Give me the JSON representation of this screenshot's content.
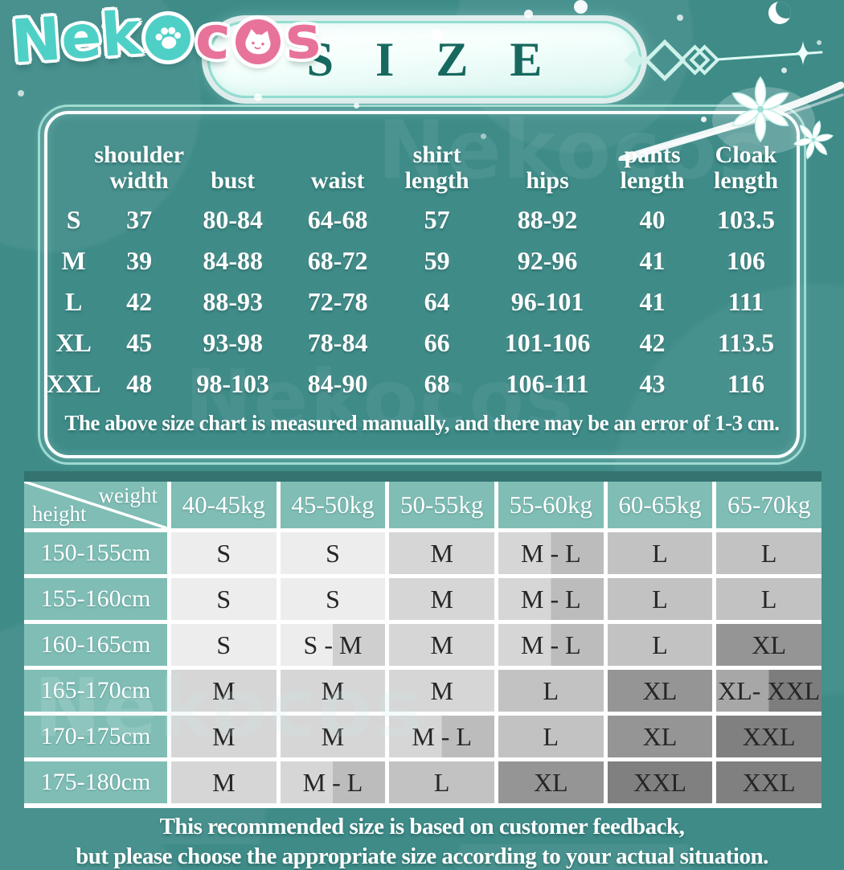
{
  "colors": {
    "background": "#3e8b88",
    "header_cell": "#7fbdb5",
    "dark_strip": "#337471",
    "logo_teal": "#4fd0c6",
    "logo_pink": "#e8739a",
    "banner_title": "#17695f",
    "table_text": "#ffffff",
    "data_text": "#262626"
  },
  "logo": {
    "part1": "Nek",
    "part2": "c",
    "part3": "s",
    "paw_icon": "paw-print",
    "cat_icon": "cat-face"
  },
  "banner": {
    "title": "SIZE"
  },
  "size_table": {
    "columns": [
      "shoulder\nwidth",
      "bust",
      "waist",
      "shirt\nlength",
      "hips",
      "pants\nlength",
      "Cloak\nlength"
    ],
    "rows": [
      {
        "size": "S",
        "values": [
          "37",
          "80-84",
          "64-68",
          "57",
          "88-92",
          "40",
          "103.5"
        ]
      },
      {
        "size": "M",
        "values": [
          "39",
          "84-88",
          "68-72",
          "59",
          "92-96",
          "41",
          "106"
        ]
      },
      {
        "size": "L",
        "values": [
          "42",
          "88-93",
          "72-78",
          "64",
          "96-101",
          "41",
          "111"
        ]
      },
      {
        "size": "XL",
        "values": [
          "45",
          "93-98",
          "78-84",
          "66",
          "101-106",
          "42",
          "113.5"
        ]
      },
      {
        "size": "XXL",
        "values": [
          "48",
          "98-103",
          "84-90",
          "68",
          "106-111",
          "43",
          "116"
        ]
      }
    ],
    "note": "The above size chart is measured manually, and there may be an error of 1-3 cm."
  },
  "recommend_table": {
    "corner": {
      "top_label": "weight",
      "bottom_label": "height"
    },
    "weight_columns": [
      "40-45kg",
      "45-50kg",
      "50-55kg",
      "55-60kg",
      "60-65kg",
      "65-70kg"
    ],
    "rows": [
      {
        "height": "150-155cm",
        "cells": [
          "S",
          "S",
          "M",
          "M - L",
          "L",
          "L"
        ]
      },
      {
        "height": "155-160cm",
        "cells": [
          "S",
          "S",
          "M",
          "M - L",
          "L",
          "L"
        ]
      },
      {
        "height": "160-165cm",
        "cells": [
          "S",
          "S - M",
          "M",
          "M - L",
          "L",
          "XL"
        ]
      },
      {
        "height": "165-170cm",
        "cells": [
          "M",
          "M",
          "M",
          "L",
          "XL",
          "XL- XXL"
        ]
      },
      {
        "height": "170-175cm",
        "cells": [
          "M",
          "M",
          "M - L",
          "L",
          "XL",
          "XXL"
        ]
      },
      {
        "height": "175-180cm",
        "cells": [
          "M",
          "M - L",
          "L",
          "XL",
          "XXL",
          "XXL"
        ]
      }
    ],
    "cell_shades": {
      "S": "#ededed",
      "S-M": [
        "#ededed",
        "#cfcfcf"
      ],
      "M": "#d6d6d6",
      "M-L": [
        "#d6d6d6",
        "#bcbcbc"
      ],
      "L": "#c2c2c2",
      "XL": "#959595",
      "XL-XXL": [
        "#a7a7a7",
        "#7d7d7d"
      ],
      "XXL": "#808080"
    }
  },
  "footer": {
    "line1": "This recommended size is based on customer feedback,",
    "line2": "but please choose the appropriate size according to your actual situation."
  },
  "watermark": "Nekocos"
}
